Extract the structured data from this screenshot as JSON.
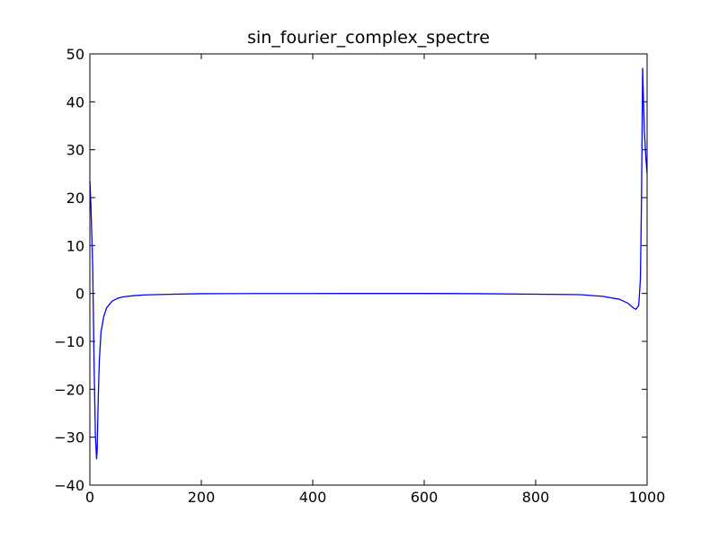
{
  "chart_data": {
    "type": "line",
    "title": "sin_fourier_complex_spectre",
    "xlabel": "",
    "ylabel": "",
    "xlim": [
      0,
      1000
    ],
    "ylim": [
      -40,
      50
    ],
    "xticks": [
      0,
      200,
      400,
      600,
      800,
      1000
    ],
    "yticks": [
      -40,
      -30,
      -20,
      -10,
      0,
      10,
      20,
      30,
      40,
      50
    ],
    "xtick_labels": [
      "0",
      "200",
      "400",
      "600",
      "800",
      "1000"
    ],
    "ytick_labels": [
      "−40",
      "−30",
      "−20",
      "−10",
      "0",
      "10",
      "20",
      "30",
      "40",
      "50"
    ],
    "grid": false,
    "legend": "none",
    "series": [
      {
        "color": "#0000ff",
        "x": [
          0,
          2,
          5,
          8,
          10,
          12,
          13,
          15,
          17,
          20,
          25,
          30,
          40,
          50,
          60,
          80,
          100,
          150,
          200,
          300,
          400,
          500,
          600,
          700,
          800,
          880,
          920,
          950,
          965,
          975,
          980,
          985,
          988,
          990,
          992,
          995,
          998,
          1000
        ],
        "y": [
          23.5,
          18,
          6,
          -18,
          -30,
          -34.5,
          -33,
          -22,
          -14,
          -8,
          -4.8,
          -3,
          -1.6,
          -1.0,
          -0.7,
          -0.45,
          -0.3,
          -0.15,
          -0.05,
          -0.02,
          -0.01,
          0.0,
          0.0,
          -0.05,
          -0.15,
          -0.25,
          -0.6,
          -1.2,
          -2.0,
          -3.0,
          -3.3,
          -2.5,
          3,
          20,
          47,
          34,
          28,
          25
        ]
      }
    ]
  }
}
